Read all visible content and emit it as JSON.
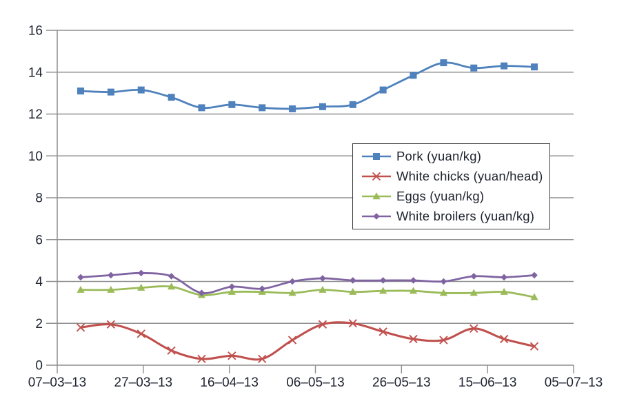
{
  "chart_data": {
    "type": "line",
    "title": "",
    "xlabel": "",
    "ylabel": "",
    "ylim": [
      0,
      16
    ],
    "y_ticks": [
      0,
      2,
      4,
      6,
      8,
      10,
      12,
      14,
      16
    ],
    "x_tick_labels": [
      "07–03–13",
      "27–03–13",
      "16–04–13",
      "06–05–13",
      "26–05–13",
      "15–06–13",
      "05–07–13"
    ],
    "grid": true,
    "legend_position": "center-right",
    "line_style": "smooth",
    "series": [
      {
        "name": "Pork (yuan/kg)",
        "color": "#4F81BD",
        "marker": "square",
        "values": [
          13.1,
          13.05,
          13.15,
          12.8,
          12.3,
          12.45,
          12.3,
          12.25,
          12.35,
          12.45,
          13.15,
          13.85,
          14.45,
          14.2,
          14.3,
          14.25
        ]
      },
      {
        "name": "White chicks (yuan/head)",
        "color": "#C0504D",
        "marker": "x",
        "values": [
          1.8,
          1.95,
          1.5,
          0.7,
          0.3,
          0.45,
          0.3,
          1.2,
          1.95,
          2.0,
          1.6,
          1.25,
          1.2,
          1.75,
          1.25,
          0.9
        ]
      },
      {
        "name": "Eggs (yuan/kg)",
        "color": "#9BBB59",
        "marker": "triangle",
        "values": [
          3.6,
          3.6,
          3.7,
          3.75,
          3.35,
          3.5,
          3.5,
          3.45,
          3.6,
          3.5,
          3.55,
          3.55,
          3.45,
          3.45,
          3.5,
          3.25
        ]
      },
      {
        "name": "White broilers (yuan/kg)",
        "color": "#8064A2",
        "marker": "diamond",
        "values": [
          4.2,
          4.3,
          4.4,
          4.25,
          3.45,
          3.75,
          3.65,
          4.0,
          4.15,
          4.05,
          4.05,
          4.05,
          4.0,
          4.25,
          4.2,
          4.3
        ]
      }
    ]
  },
  "colors": {
    "gridline": "#8f8f8f",
    "axis_text": "#1f2430",
    "background": "#ffffff",
    "legend_border": "#3f3f3f"
  }
}
